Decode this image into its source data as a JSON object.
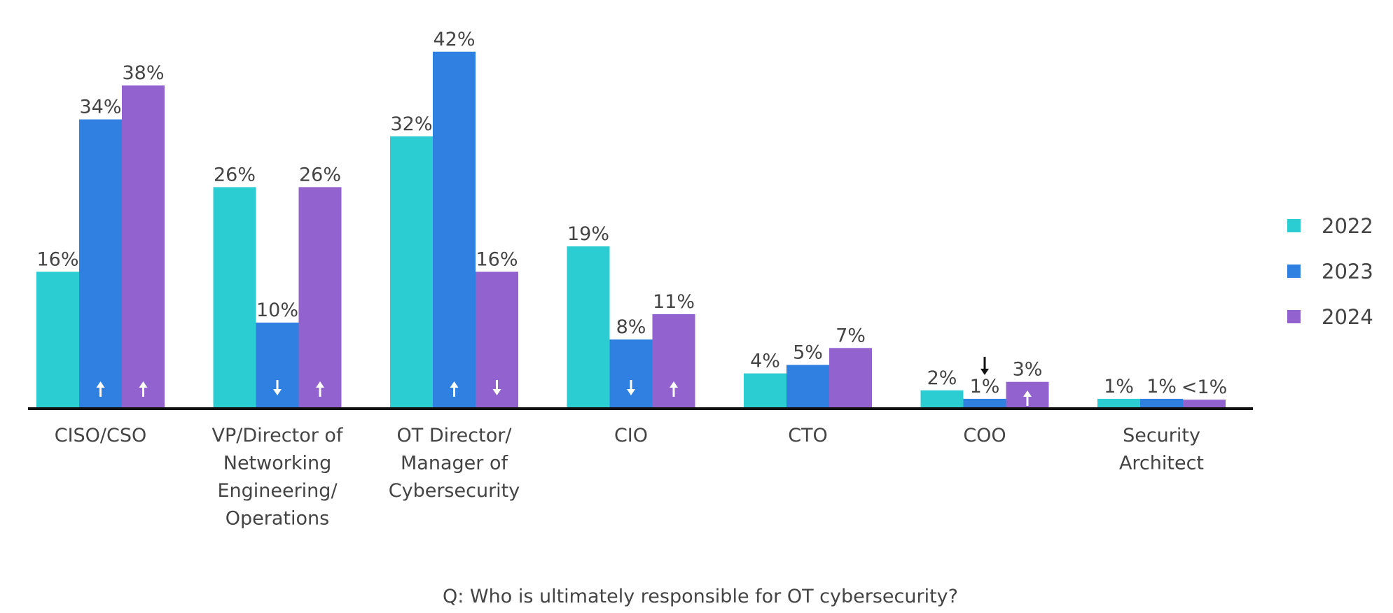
{
  "chart_data": {
    "type": "bar",
    "title": "",
    "xlabel": "",
    "ylabel": "",
    "ylim": [
      0,
      44
    ],
    "grid": false,
    "legend_position": "right",
    "caption": "Q: Who is ultimately responsible for OT cybersecurity?",
    "categories": [
      [
        "CISO/CSO"
      ],
      [
        "VP/Director of",
        "Networking",
        "Engineering/",
        "Operations"
      ],
      [
        "OT Director/",
        "Manager of",
        "Cybersecurity"
      ],
      [
        "CIO"
      ],
      [
        "CTO"
      ],
      [
        "COO"
      ],
      [
        "Security",
        "Architect"
      ]
    ],
    "series": [
      {
        "name": "2022",
        "color": "#2ccdd2",
        "values": [
          16,
          26,
          32,
          19,
          4,
          2,
          1
        ],
        "labels": [
          "16%",
          "26%",
          "32%",
          "19%",
          "4%",
          "2%",
          "1%"
        ],
        "trend": [
          null,
          null,
          null,
          null,
          null,
          null,
          null
        ]
      },
      {
        "name": "2023",
        "color": "#2f80e0",
        "values": [
          34,
          10,
          42,
          8,
          5,
          1,
          1
        ],
        "labels": [
          "34%",
          "10%",
          "42%",
          "8%",
          "5%",
          "1%",
          "1%"
        ],
        "trend": [
          "up",
          "down",
          "up",
          "down",
          null,
          "down",
          null
        ]
      },
      {
        "name": "2024",
        "color": "#9262cf",
        "values": [
          38,
          26,
          16,
          11,
          7,
          3,
          0.9
        ],
        "labels": [
          "38%",
          "26%",
          "16%",
          "11%",
          "7%",
          "3%",
          "<1%"
        ],
        "trend": [
          "up",
          "up",
          "down",
          "up",
          null,
          "up",
          null
        ]
      }
    ]
  }
}
